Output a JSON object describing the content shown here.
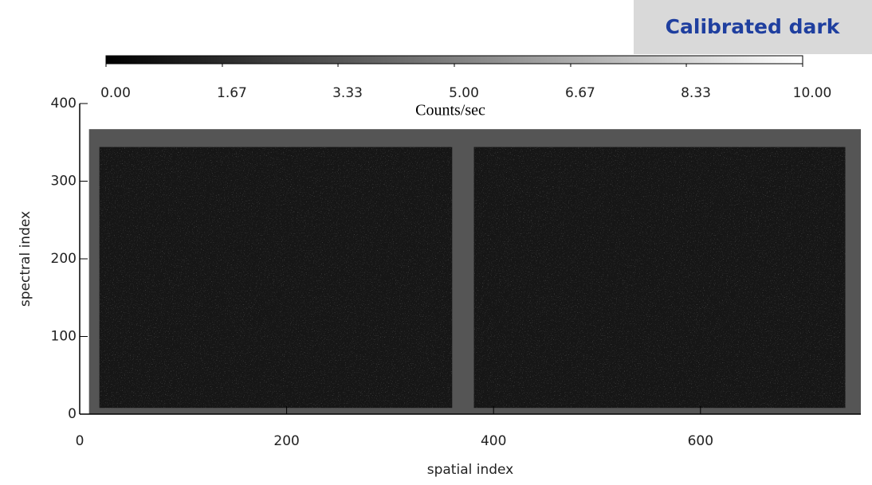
{
  "badge": "Calibrated dark",
  "chart_data": {
    "type": "image",
    "xlabel": "spatial index",
    "ylabel": "spectral index",
    "xlim": [
      0,
      755
    ],
    "ylim": [
      0,
      400
    ],
    "xticks": [
      0,
      200,
      400,
      600
    ],
    "yticks": [
      0,
      100,
      200,
      300,
      400
    ],
    "frame": {
      "x": [
        9,
        755
      ],
      "y": [
        0,
        367
      ],
      "color": "#555555"
    },
    "panels": [
      {
        "x": [
          19,
          360
        ],
        "y": [
          8,
          344
        ]
      },
      {
        "x": [
          381,
          740
        ],
        "y": [
          8,
          344
        ]
      }
    ],
    "panel_color": "#161616",
    "colorbar": {
      "label": "Counts/sec",
      "lim": [
        0,
        10
      ],
      "ticks": [
        {
          "value": 0,
          "label": "0.00"
        },
        1.67,
        3.33,
        {
          "value": 5,
          "label": "5.00"
        },
        6.67,
        8.33,
        {
          "value": 10,
          "label": "10.00"
        }
      ],
      "colors": [
        "#000000",
        "#ffffff"
      ]
    }
  }
}
